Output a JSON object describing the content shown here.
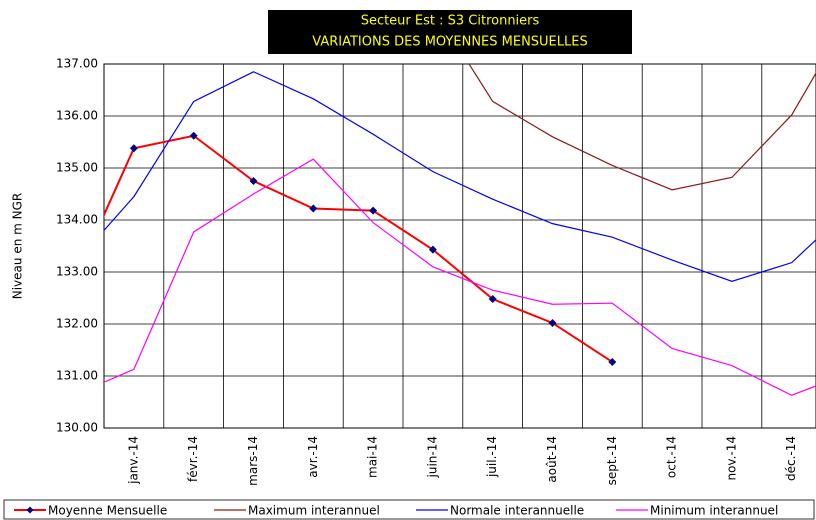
{
  "chart_data": {
    "type": "line",
    "title": "Secteur Est : S3 Citronniers",
    "subtitle": "VARIATIONS DES MOYENNES MENSUELLES",
    "y_label": "Niveau en m NGR",
    "categories": [
      null,
      "janv.-14",
      "févr.-14",
      "mars-14",
      "avr.-14",
      "mai-14",
      "juin-14",
      "juil.-14",
      "août-14",
      "sept.-14",
      "oct.-14",
      "nov.-14",
      "déc.-14",
      null
    ],
    "series": [
      {
        "name": "Moyenne  Mensuelle",
        "color": "#ff0000",
        "marker": true,
        "values": [
          132.82,
          135.38,
          135.62,
          134.75,
          134.22,
          134.18,
          133.43,
          132.48,
          132.02,
          131.27,
          null,
          null,
          null,
          null
        ]
      },
      {
        "name": "Maximum interannuel",
        "color": "#8b1a1a",
        "marker": false,
        "values": [
          null,
          null,
          null,
          null,
          null,
          null,
          138.1,
          136.28,
          135.6,
          135.05,
          134.58,
          134.82,
          136.02,
          138.0
        ]
      },
      {
        "name": "Normale  interannuelle",
        "color": "#0000ff",
        "marker": false,
        "values": [
          133.15,
          134.45,
          136.28,
          136.85,
          136.33,
          135.65,
          134.93,
          134.4,
          133.93,
          133.67,
          133.23,
          132.82,
          133.18,
          134.26
        ]
      },
      {
        "name": "Minimum interannuel",
        "color": "#ff00ff",
        "marker": false,
        "values": [
          130.63,
          131.13,
          133.77,
          134.5,
          135.17,
          133.95,
          133.1,
          132.65,
          132.38,
          132.4,
          131.53,
          131.2,
          130.63,
          131.07
        ]
      }
    ],
    "ylim": [
      130,
      137
    ],
    "yticks": [
      {
        "value": 130,
        "label": "130.00"
      },
      {
        "value": 131,
        "label": "131.00"
      },
      {
        "value": 132,
        "label": "132.00"
      },
      {
        "value": 133,
        "label": "133.00"
      },
      {
        "value": 134,
        "label": "134.00"
      },
      {
        "value": 135,
        "label": "135.00"
      },
      {
        "value": 136,
        "label": "136.00"
      },
      {
        "value": 137,
        "label": "137.00"
      }
    ],
    "grid": true
  }
}
